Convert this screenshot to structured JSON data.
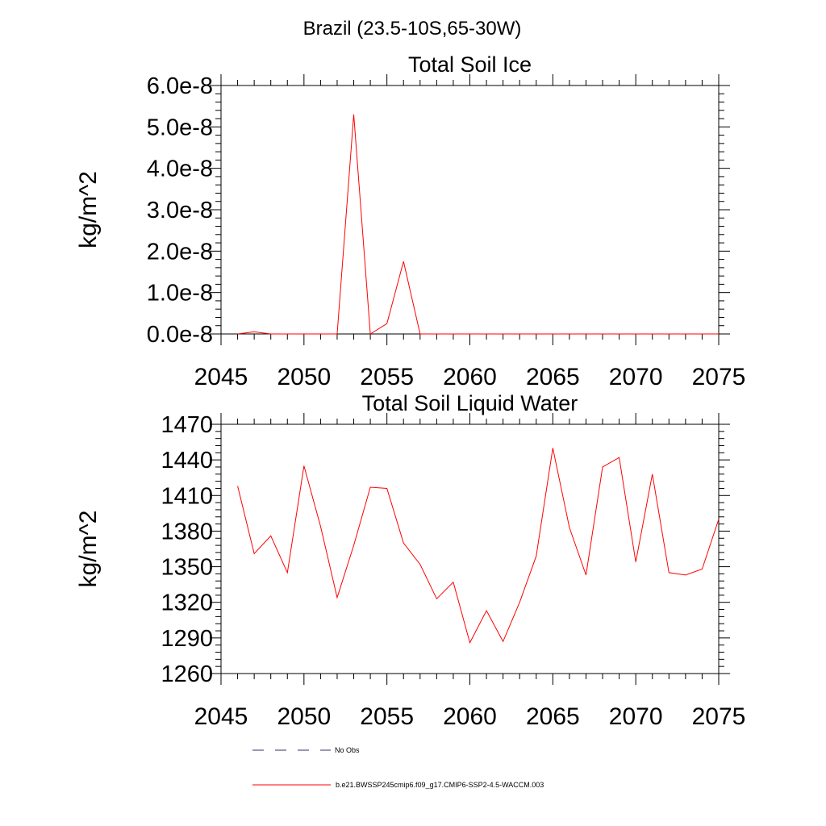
{
  "figure": {
    "suptitle": "Brazil (23.5-10S,65-30W)"
  },
  "colors": {
    "series": "#ff0000",
    "obs": "#333366",
    "axes": "#000000"
  },
  "legend": {
    "obs_label": "No Obs",
    "model_label": "b.e21.BWSSP245cmip6.f09_g17.CMIP6-SSP2-4.5-WACCM.003"
  },
  "chart_data": [
    {
      "type": "line",
      "title": "Total Soil Ice",
      "ylabel": "kg/m^2",
      "xlabel": "",
      "xlim": [
        2045,
        2075
      ],
      "ylim": [
        0,
        6e-08
      ],
      "xticks": [
        2045,
        2050,
        2055,
        2060,
        2065,
        2070,
        2075
      ],
      "xtick_labels": [
        "2045",
        "2050",
        "2055",
        "2060",
        "2065",
        "2070",
        "2075"
      ],
      "yticks": [
        0,
        1e-08,
        2e-08,
        3e-08,
        4e-08,
        5e-08,
        6e-08
      ],
      "ytick_labels": [
        "0.0e-8",
        "1.0e-8",
        "2.0e-8",
        "3.0e-8",
        "4.0e-8",
        "5.0e-8",
        "6.0e-8"
      ],
      "grid": false,
      "series": [
        {
          "color": "#ff0000",
          "x": [
            2046,
            2047,
            2048,
            2049,
            2050,
            2051,
            2052,
            2053,
            2054,
            2055,
            2056,
            2057,
            2058,
            2059,
            2060,
            2061,
            2062,
            2063,
            2064,
            2065,
            2066,
            2067,
            2068,
            2069,
            2070,
            2071,
            2072,
            2073,
            2074,
            2075
          ],
          "y": [
            0,
            5e-10,
            0,
            0,
            0,
            0,
            0,
            5.3e-08,
            0,
            2.5e-09,
            1.75e-08,
            0,
            0,
            0,
            0,
            0,
            0,
            0,
            0,
            0,
            0,
            0,
            0,
            0,
            0,
            0,
            0,
            0,
            0,
            0
          ]
        }
      ]
    },
    {
      "type": "line",
      "title": "Total Soil Liquid Water",
      "ylabel": "kg/m^2",
      "xlabel": "",
      "xlim": [
        2045,
        2075
      ],
      "ylim": [
        1260,
        1470
      ],
      "xticks": [
        2045,
        2050,
        2055,
        2060,
        2065,
        2070,
        2075
      ],
      "xtick_labels": [
        "2045",
        "2050",
        "2055",
        "2060",
        "2065",
        "2070",
        "2075"
      ],
      "yticks": [
        1260,
        1290,
        1320,
        1350,
        1380,
        1410,
        1440,
        1470
      ],
      "ytick_labels": [
        "1260",
        "1290",
        "1320",
        "1350",
        "1380",
        "1410",
        "1440",
        "1470"
      ],
      "grid": false,
      "series": [
        {
          "color": "#ff0000",
          "x": [
            2046,
            2047,
            2048,
            2049,
            2050,
            2051,
            2052,
            2053,
            2054,
            2055,
            2056,
            2057,
            2058,
            2059,
            2060,
            2061,
            2062,
            2063,
            2064,
            2065,
            2066,
            2067,
            2068,
            2069,
            2070,
            2071,
            2072,
            2073,
            2074,
            2075
          ],
          "y": [
            1418,
            1361,
            1376,
            1345,
            1435,
            1384,
            1324,
            1368,
            1417,
            1416,
            1370,
            1352,
            1323,
            1337,
            1286,
            1313,
            1287,
            1320,
            1359,
            1450,
            1383,
            1343,
            1434,
            1442,
            1354,
            1428,
            1345,
            1343,
            1348,
            1390
          ]
        }
      ]
    }
  ]
}
